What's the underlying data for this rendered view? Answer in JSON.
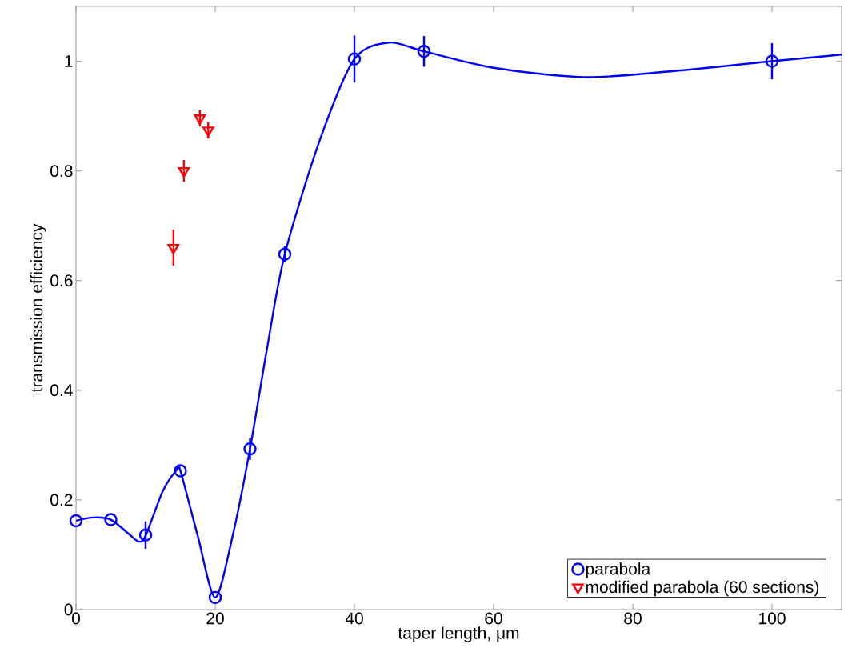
{
  "chart_data": {
    "type": "scatter",
    "xlabel": "taper length, μm",
    "ylabel": "transmission efficiency",
    "xlim": [
      0,
      110
    ],
    "ylim": [
      0,
      1.1
    ],
    "xticks": [
      0,
      20,
      40,
      60,
      80,
      100
    ],
    "yticks": [
      0,
      0.2,
      0.4,
      0.6,
      0.8,
      1
    ],
    "legend": "bottom right",
    "grid": false,
    "series": [
      {
        "name": "parabola",
        "color": "#0000ff",
        "marker": "circle",
        "x": [
          0,
          5,
          10,
          15,
          20,
          25,
          30,
          40,
          50,
          100
        ],
        "values": [
          0.162,
          0.164,
          0.136,
          0.253,
          0.022,
          0.293,
          0.648,
          1.004,
          1.018,
          1.0
        ],
        "errors": [
          null,
          null,
          0.025,
          null,
          null,
          0.02,
          0.015,
          0.043,
          0.028,
          0.033
        ]
      },
      {
        "name": "modified parabola (60 sections)",
        "color": "#ff0000",
        "marker": "triangle",
        "x": [
          14.0,
          15.5,
          17.8,
          19.0
        ],
        "values": [
          0.66,
          0.8,
          0.896,
          0.874
        ],
        "errors": [
          0.033,
          0.02,
          0.015,
          0.015
        ]
      },
      {
        "type": "line",
        "color": "#0000ff",
        "marker": "none",
        "x": [
          0,
          2.5,
          5,
          7.5,
          9,
          10,
          12.5,
          14.5,
          15,
          17.5,
          20,
          22.5,
          25,
          27.5,
          30,
          35,
          40,
          45,
          50,
          60,
          73,
          85,
          100,
          110
        ],
        "values": [
          0.162,
          0.168,
          0.164,
          0.139,
          0.124,
          0.135,
          0.217,
          0.255,
          0.253,
          0.134,
          0.022,
          0.134,
          0.293,
          0.48,
          0.648,
          0.855,
          1.004,
          1.034,
          1.018,
          0.988,
          0.971,
          0.981,
          1.0,
          1.012
        ]
      }
    ]
  }
}
